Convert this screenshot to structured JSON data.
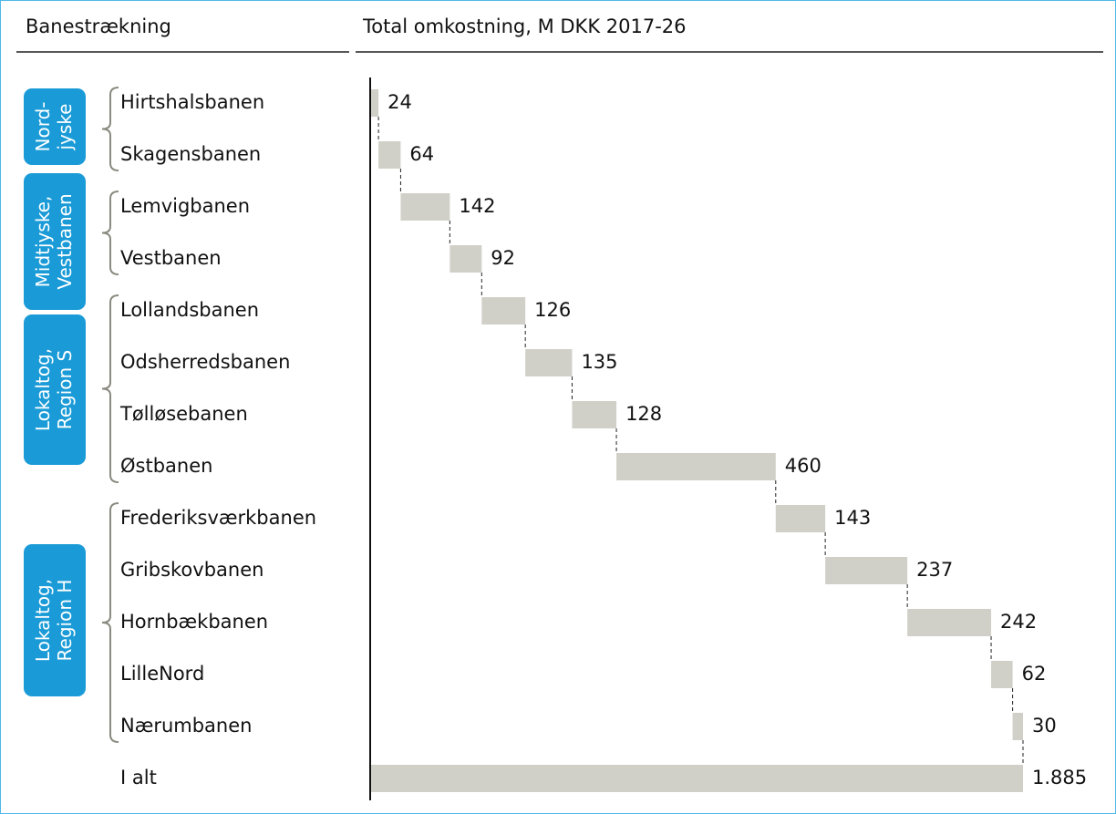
{
  "chart_data": {
    "type": "waterfall",
    "category_header": "Banestrækning",
    "title": "Total omkostning, M DKK 2017-26",
    "categories": [
      "Hirtshalsbanen",
      "Skagensbanen",
      "Lemvigbanen",
      "Vestbanen",
      "Lollandsbanen",
      "Odsherredsbanen",
      "Tølløsebanen",
      "Østbanen",
      "Frederiksværkbanen",
      "Gribskovbanen",
      "Hornbækbanen",
      "LilleNord",
      "Nærumbanen",
      "I alt"
    ],
    "values": [
      24,
      64,
      142,
      92,
      126,
      135,
      128,
      460,
      143,
      237,
      242,
      62,
      30,
      1885
    ],
    "value_labels": [
      "24",
      "64",
      "142",
      "92",
      "126",
      "135",
      "128",
      "460",
      "143",
      "237",
      "242",
      "62",
      "30",
      "1.885"
    ],
    "color": "#d1d0c8",
    "groups": [
      {
        "lines": [
          "Nord-",
          "jyske"
        ]
      },
      {
        "lines": [
          "Midtjyske,",
          "Vestbanen"
        ]
      },
      {
        "lines": [
          "Lokaltog,",
          "Region S"
        ]
      },
      {
        "lines": [
          "Lokaltog,",
          "Region H"
        ]
      }
    ],
    "group_color": "#1a9bd7"
  }
}
